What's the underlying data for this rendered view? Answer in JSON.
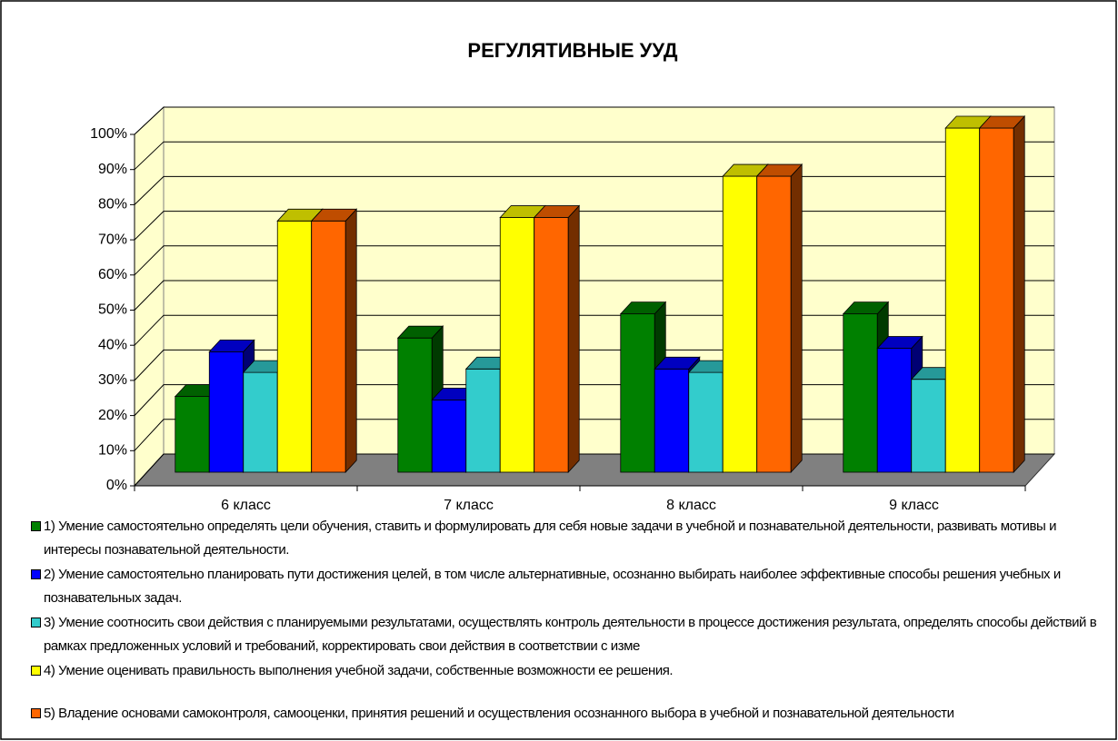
{
  "chart_data": {
    "type": "bar3d",
    "title": "РЕГУЛЯТИВНЫЕ УУД",
    "categories": [
      "6 класс",
      "7 класс",
      "8 класс",
      "9 класс"
    ],
    "series": [
      {
        "name": "1) Умение самостоятельно определять цели обучения, ставить и формулировать для себя новые задачи в учебной и познавательной деятельности, развивать мотивы и интересы познавательной деятельности.",
        "color": "#008000",
        "values": [
          22,
          39,
          46,
          46
        ]
      },
      {
        "name": "2) Умение самостоятельно планировать пути достижения целей, в том числе альтернативные, осознанно выбирать наиболее эффективные способы решения учебных и познавательных задач.",
        "color": "#0000ff",
        "values": [
          35,
          21,
          30,
          36
        ]
      },
      {
        "name": "3) Умение соотносить свои действия с планируемыми результатами, осуществлять контроль деятельности в процессе достижения результата, определять способы действий в рамках предложенных условий и требований, корректировать свои действия в соответствии с изме",
        "color": "#33cccc",
        "values": [
          29,
          30,
          29,
          27
        ]
      },
      {
        "name": "4) Умение оценивать правильность выполнения учебной задачи, собственные возможности ее решения.",
        "color": "#ffff00",
        "values": [
          73,
          74,
          86,
          100
        ]
      },
      {
        "name": "5) Владение основами самоконтроля, самооценки, принятия решений и осуществления осознанного выбора в учебной и познавательной деятельности",
        "color": "#ff6600",
        "values": [
          73,
          74,
          86,
          100
        ]
      }
    ],
    "ylim": [
      0,
      100
    ],
    "yticks": [
      {
        "value": 0,
        "label": "0%"
      },
      {
        "value": 10,
        "label": "10%"
      },
      {
        "value": 20,
        "label": "20%"
      },
      {
        "value": 30,
        "label": "30%"
      },
      {
        "value": 40,
        "label": "40%"
      },
      {
        "value": 50,
        "label": "50%"
      },
      {
        "value": 60,
        "label": "60%"
      },
      {
        "value": 70,
        "label": "70%"
      },
      {
        "value": 80,
        "label": "80%"
      },
      {
        "value": 90,
        "label": "90%"
      },
      {
        "value": 100,
        "label": "100%"
      }
    ],
    "grid": true
  }
}
